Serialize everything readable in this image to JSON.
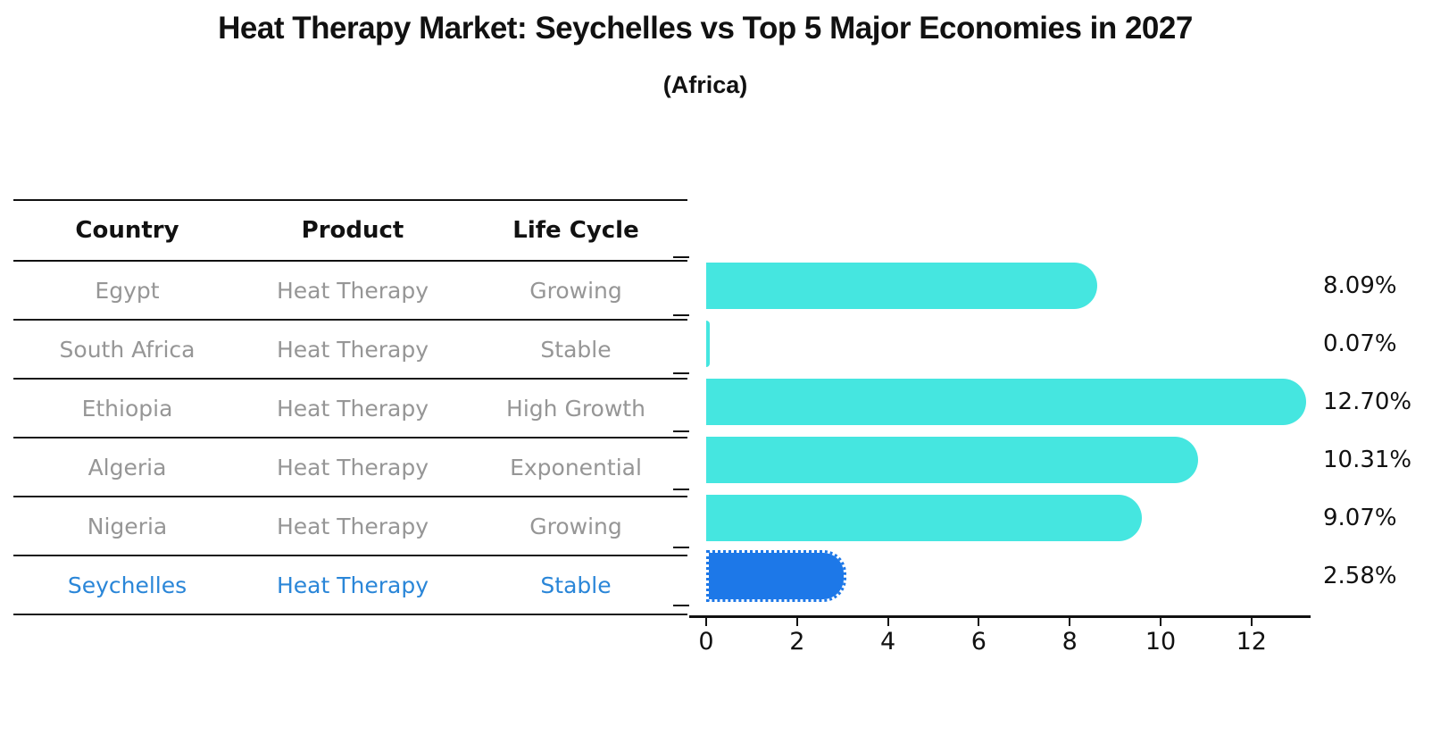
{
  "title": "Heat Therapy Market: Seychelles vs Top 5 Major Economies in 2027",
  "subtitle": "(Africa)",
  "table": {
    "headers": [
      "Country",
      "Product",
      "Life Cycle"
    ],
    "rows": [
      {
        "country": "Egypt",
        "product": "Heat Therapy",
        "life_cycle": "Growing",
        "highlight": false
      },
      {
        "country": "South Africa",
        "product": "Heat Therapy",
        "life_cycle": "Stable",
        "highlight": false
      },
      {
        "country": "Ethiopia",
        "product": "Heat Therapy",
        "life_cycle": "High Growth",
        "highlight": false
      },
      {
        "country": "Algeria",
        "product": "Heat Therapy",
        "life_cycle": "Exponential",
        "highlight": false
      },
      {
        "country": "Nigeria",
        "product": "Heat Therapy",
        "life_cycle": "Growing",
        "highlight": true
      }
    ],
    "highlight_row": {
      "country": "Seychelles",
      "product": "Heat Therapy",
      "life_cycle": "Stable"
    }
  },
  "chart_data": {
    "type": "bar",
    "orientation": "horizontal",
    "title": "Heat Therapy Market: Seychelles vs Top 5 Major Economies in 2027",
    "subtitle": "(Africa)",
    "categories": [
      "Egypt",
      "South Africa",
      "Ethiopia",
      "Algeria",
      "Nigeria",
      "Seychelles"
    ],
    "values": [
      8.09,
      0.07,
      12.7,
      10.31,
      9.07,
      2.58
    ],
    "value_labels": [
      "8.09%",
      "0.07%",
      "12.70%",
      "10.31%",
      "9.07%",
      "2.58%"
    ],
    "highlight_index": 5,
    "x_ticks": [
      0,
      2,
      4,
      6,
      8,
      10,
      12
    ],
    "xlim": [
      0,
      13.3
    ],
    "grid": false,
    "legend": "none",
    "colors": {
      "bar": "#45e6e0",
      "highlight_bar": "#1d78e8",
      "highlight_text": "#2a86d8",
      "axis": "#111111",
      "row_text": "#969696"
    }
  }
}
